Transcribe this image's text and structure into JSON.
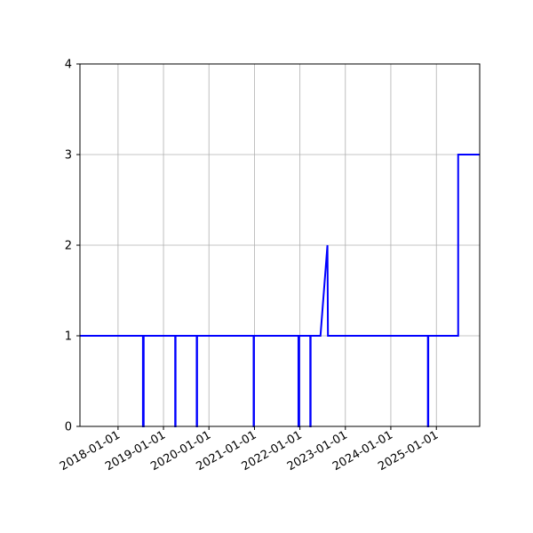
{
  "chart_data": {
    "type": "line",
    "title": "",
    "xlabel": "",
    "ylabel": "",
    "x_axis_type": "date",
    "xlim": [
      "2017-03-01",
      "2025-12-15"
    ],
    "ylim": [
      0,
      4
    ],
    "grid": true,
    "line_color": "#0000ff",
    "x_ticks": [
      "2018-01-01",
      "2019-01-01",
      "2020-01-01",
      "2021-01-01",
      "2022-01-01",
      "2023-01-01",
      "2024-01-01",
      "2025-01-01"
    ],
    "y_ticks": [
      0,
      1,
      2,
      3,
      4
    ],
    "series": [
      {
        "points": [
          [
            "2017-03-01",
            1
          ],
          [
            "2018-07-20",
            1
          ],
          [
            "2018-07-20",
            0
          ],
          [
            "2018-07-26",
            0
          ],
          [
            "2018-07-26",
            1
          ],
          [
            "2019-04-05",
            1
          ],
          [
            "2019-04-05",
            0
          ],
          [
            "2019-04-08",
            0
          ],
          [
            "2019-04-08",
            1
          ],
          [
            "2019-09-25",
            1
          ],
          [
            "2019-09-25",
            0
          ],
          [
            "2019-09-28",
            0
          ],
          [
            "2019-09-28",
            1
          ],
          [
            "2020-12-25",
            1
          ],
          [
            "2020-12-25",
            0
          ],
          [
            "2020-12-28",
            0
          ],
          [
            "2020-12-28",
            1
          ],
          [
            "2021-12-20",
            1
          ],
          [
            "2021-12-20",
            0
          ],
          [
            "2021-12-26",
            0
          ],
          [
            "2021-12-26",
            1
          ],
          [
            "2022-03-25",
            1
          ],
          [
            "2022-03-25",
            0
          ],
          [
            "2022-03-28",
            0
          ],
          [
            "2022-03-28",
            1
          ],
          [
            "2022-06-15",
            1
          ],
          [
            "2022-08-10",
            2
          ],
          [
            "2022-08-14",
            1
          ],
          [
            "2024-10-25",
            1
          ],
          [
            "2024-10-25",
            0
          ],
          [
            "2024-10-28",
            0
          ],
          [
            "2024-10-28",
            1
          ],
          [
            "2025-06-25",
            1
          ],
          [
            "2025-06-25",
            3
          ],
          [
            "2025-12-15",
            3
          ]
        ]
      }
    ]
  }
}
